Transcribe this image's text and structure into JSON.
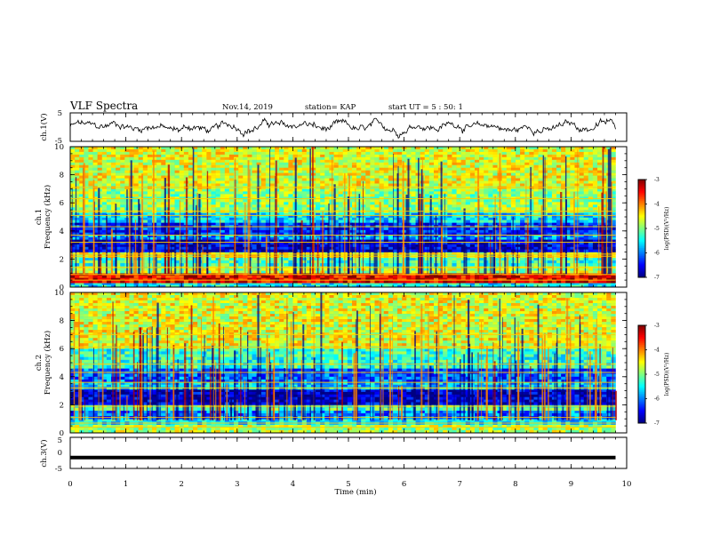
{
  "header": {
    "title": "VLF Spectra",
    "date": "Nov.14, 2019",
    "station": "station= KAP",
    "start": "start  UT =  5 : 50: 1"
  },
  "chart_data": [
    {
      "type": "line",
      "panel": "ch1-waveform",
      "ylabel": "ch.1(V)",
      "yticks": [
        "5",
        "-5"
      ],
      "ylim": [
        -5,
        5
      ],
      "xlim": [
        0,
        10
      ],
      "series": [
        {
          "values_description_only": false,
          "samples": "signal fluctuating approximately between -3 and 3 V over 0 to 9.8 min"
        }
      ]
    },
    {
      "type": "heatmap",
      "panel": "ch1-spectrogram",
      "ylabel": "ch.1\nFrequency (kHz)",
      "yticks": [
        "0",
        "2",
        "4",
        "6",
        "8",
        "10"
      ],
      "ylim": [
        0,
        10
      ],
      "xlim": [
        0,
        10
      ],
      "data_extent_min": 9.8,
      "colorbar": {
        "label": "log(PSD)(V²/Hz)",
        "ticks": [
          "-3",
          "-4",
          "-5",
          "-6",
          "-7"
        ],
        "range": [
          -7,
          -3
        ]
      },
      "bands": [
        {
          "from": 0.0,
          "to": 0.3,
          "level": -5.5
        },
        {
          "from": 0.3,
          "to": 1.0,
          "level": -3.4
        },
        {
          "from": 1.0,
          "to": 1.5,
          "level": -4.8
        },
        {
          "from": 1.5,
          "to": 2.1,
          "level": -5.3
        },
        {
          "from": 2.1,
          "to": 2.5,
          "level": -4.6
        },
        {
          "from": 2.5,
          "to": 3.4,
          "level": -6.6
        },
        {
          "from": 3.4,
          "to": 3.7,
          "level": -5.9
        },
        {
          "from": 3.7,
          "to": 4.6,
          "level": -6.3
        },
        {
          "from": 4.6,
          "to": 5.3,
          "level": -5.6
        },
        {
          "from": 5.3,
          "to": 7.0,
          "level": -4.9
        },
        {
          "from": 7.0,
          "to": 10.0,
          "level": -4.6
        }
      ],
      "lines_khz": [
        0.5,
        0.9,
        1.4,
        2.2,
        2.35,
        3.2,
        3.7,
        4.3,
        5.1,
        5.4,
        6.3,
        7.1
      ]
    },
    {
      "type": "heatmap",
      "panel": "ch2-spectrogram",
      "ylabel": "ch.2\nFrequency (kHz)",
      "yticks": [
        "0",
        "2",
        "4",
        "6",
        "8",
        "10"
      ],
      "ylim": [
        0,
        10
      ],
      "xlim": [
        0,
        10
      ],
      "data_extent_min": 9.8,
      "colorbar": {
        "label": "log(PSD)(V²/Hz)",
        "ticks": [
          "-3",
          "-4",
          "-5",
          "-6",
          "-7"
        ],
        "range": [
          -7,
          -3
        ]
      },
      "bands": [
        {
          "from": 0.0,
          "to": 0.6,
          "level": -4.8
        },
        {
          "from": 0.6,
          "to": 1.0,
          "level": -5.6
        },
        {
          "from": 1.0,
          "to": 1.6,
          "level": -6.0
        },
        {
          "from": 1.6,
          "to": 2.0,
          "level": -5.2
        },
        {
          "from": 2.0,
          "to": 3.1,
          "level": -6.7
        },
        {
          "from": 3.1,
          "to": 3.6,
          "level": -5.7
        },
        {
          "from": 3.6,
          "to": 4.6,
          "level": -6.1
        },
        {
          "from": 4.6,
          "to": 6.0,
          "level": -5.3
        },
        {
          "from": 6.0,
          "to": 10.0,
          "level": -4.6
        }
      ],
      "lines_khz": [
        0.4,
        0.7,
        1.1,
        1.9,
        3.2,
        3.6,
        4.3,
        4.9,
        6.1,
        7.0
      ]
    },
    {
      "type": "line",
      "panel": "ch3-waveform",
      "ylabel": "ch.3(V)",
      "yticks": [
        "5",
        "0",
        "-5"
      ],
      "ylim": [
        -5,
        5
      ],
      "xlim": [
        0,
        10
      ],
      "series": [
        {
          "constant_value": -1.5,
          "to_min": 9.8
        }
      ]
    }
  ],
  "xaxis": {
    "label": "Time  (min)",
    "ticks": [
      "0",
      "1",
      "2",
      "3",
      "4",
      "5",
      "6",
      "7",
      "8",
      "9",
      "10"
    ]
  },
  "colors": {
    "frame": "#000000",
    "colormap": [
      "#00007f",
      "#0000ff",
      "#007fff",
      "#00ffff",
      "#7fff7f",
      "#ffff00",
      "#ff7f00",
      "#ff0000",
      "#7f0000"
    ]
  }
}
